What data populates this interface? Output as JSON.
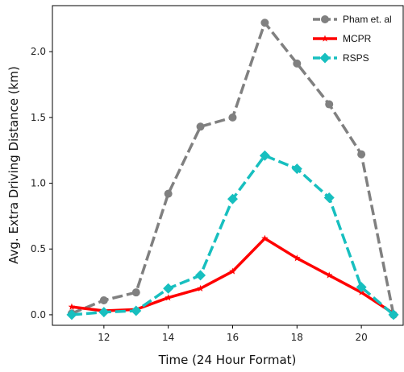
{
  "chart_data": {
    "type": "line",
    "title": "",
    "xlabel": "Time (24 Hour Format)",
    "ylabel": "Avg. Extra Driving Distance (km)",
    "x": [
      11,
      12,
      13,
      14,
      15,
      16,
      17,
      18,
      19,
      20,
      21
    ],
    "xlim": [
      10.4,
      21.3
    ],
    "ylim": [
      -0.08,
      2.35
    ],
    "xticks": [
      12,
      14,
      16,
      18,
      20
    ],
    "xtick_labels": [
      "12",
      "14",
      "16",
      "18",
      "20"
    ],
    "yticks": [
      0.0,
      0.5,
      1.0,
      1.5,
      2.0
    ],
    "ytick_labels": [
      "0.0",
      "0.5",
      "1.0",
      "1.5",
      "2.0"
    ],
    "grid": false,
    "legend_position": "top-right",
    "series": [
      {
        "name": "Pham et. al",
        "color": "#808080",
        "line_style": "dashed",
        "marker": "circle",
        "values": [
          0.01,
          0.11,
          0.17,
          0.92,
          1.43,
          1.5,
          2.22,
          1.91,
          1.6,
          1.22,
          0.0
        ]
      },
      {
        "name": "MCPR",
        "color": "#ff0000",
        "line_style": "solid",
        "marker": "star",
        "values": [
          0.06,
          0.03,
          0.04,
          0.13,
          0.2,
          0.33,
          0.58,
          0.43,
          0.3,
          0.17,
          0.01
        ]
      },
      {
        "name": "RSPS",
        "color": "#17bfbf",
        "line_style": "dashed",
        "marker": "diamond",
        "values": [
          0.0,
          0.02,
          0.03,
          0.2,
          0.3,
          0.88,
          1.21,
          1.11,
          0.89,
          0.21,
          0.0
        ]
      }
    ]
  }
}
